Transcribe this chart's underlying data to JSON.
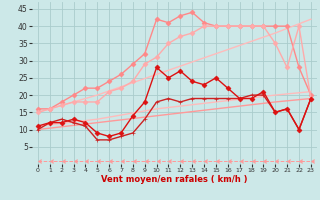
{
  "xlabel": "Vent moyen/en rafales ( km/h )",
  "bg_color": "#cce8e8",
  "grid_color": "#aacccc",
  "xlim": [
    -0.5,
    23.5
  ],
  "ylim": [
    0,
    47
  ],
  "yticks": [
    5,
    10,
    15,
    20,
    25,
    30,
    35,
    40,
    45
  ],
  "xticks": [
    0,
    1,
    2,
    3,
    4,
    5,
    6,
    7,
    8,
    9,
    10,
    11,
    12,
    13,
    14,
    15,
    16,
    17,
    18,
    19,
    20,
    21,
    22,
    23
  ],
  "series": [
    {
      "x": [
        0,
        1,
        2,
        3,
        4,
        5,
        6,
        7,
        8,
        9,
        10,
        11,
        12,
        13,
        14,
        15,
        16,
        17,
        18,
        19,
        20,
        21,
        22,
        23
      ],
      "y": [
        1,
        1,
        1,
        1,
        1,
        1,
        1,
        1,
        1,
        1,
        1,
        1,
        1,
        1,
        1,
        1,
        1,
        1,
        1,
        1,
        1,
        1,
        1,
        1
      ],
      "color": "#ff9999",
      "linewidth": 0.7,
      "marker": 4,
      "markersize": 3,
      "linestyle": "--",
      "zorder": 2
    },
    {
      "x": [
        0,
        5,
        10,
        15,
        20,
        23
      ],
      "y": [
        10,
        12,
        14,
        16,
        18,
        19
      ],
      "color": "#ff9999",
      "linewidth": 1.0,
      "marker": null,
      "markersize": 0,
      "linestyle": "-",
      "zorder": 2
    },
    {
      "x": [
        0,
        5,
        10,
        15,
        20,
        23
      ],
      "y": [
        11,
        13,
        16,
        18,
        20,
        21
      ],
      "color": "#ffbbbb",
      "linewidth": 1.0,
      "marker": null,
      "markersize": 0,
      "linestyle": "-",
      "zorder": 2
    },
    {
      "x": [
        0,
        5,
        10,
        15,
        20,
        23
      ],
      "y": [
        15,
        20,
        26,
        32,
        38,
        42
      ],
      "color": "#ffbbbb",
      "linewidth": 1.0,
      "marker": null,
      "markersize": 0,
      "linestyle": "-",
      "zorder": 2
    },
    {
      "x": [
        0,
        1,
        2,
        3,
        4,
        5,
        6,
        7,
        8,
        9,
        10,
        11,
        12,
        13,
        14,
        15,
        16,
        17,
        18,
        19,
        20,
        21,
        22,
        23
      ],
      "y": [
        16,
        16,
        18,
        20,
        22,
        22,
        24,
        26,
        29,
        32,
        42,
        41,
        43,
        44,
        41,
        40,
        40,
        40,
        40,
        40,
        40,
        40,
        28,
        20
      ],
      "color": "#ff8888",
      "linewidth": 1.0,
      "marker": "D",
      "markersize": 2.5,
      "linestyle": "-",
      "zorder": 3
    },
    {
      "x": [
        0,
        1,
        2,
        3,
        4,
        5,
        6,
        7,
        8,
        9,
        10,
        11,
        12,
        13,
        14,
        15,
        16,
        17,
        18,
        19,
        20,
        21,
        22,
        23
      ],
      "y": [
        15,
        16,
        17,
        18,
        18,
        18,
        21,
        22,
        24,
        29,
        31,
        35,
        37,
        38,
        40,
        40,
        40,
        40,
        40,
        40,
        35,
        28,
        40,
        19
      ],
      "color": "#ffaaaa",
      "linewidth": 1.0,
      "marker": "D",
      "markersize": 2.5,
      "linestyle": "-",
      "zorder": 3
    },
    {
      "x": [
        0,
        1,
        2,
        3,
        4,
        5,
        6,
        7,
        8,
        9,
        10,
        11,
        12,
        13,
        14,
        15,
        16,
        17,
        18,
        19,
        20,
        21,
        22,
        23
      ],
      "y": [
        10,
        12,
        13,
        12,
        11,
        7,
        7,
        8,
        9,
        13,
        18,
        19,
        18,
        19,
        19,
        19,
        19,
        19,
        20,
        20,
        15,
        16,
        10,
        19
      ],
      "color": "#cc2222",
      "linewidth": 1.0,
      "marker": "+",
      "markersize": 3.5,
      "linestyle": "-",
      "zorder": 4
    },
    {
      "x": [
        0,
        1,
        2,
        3,
        4,
        5,
        6,
        7,
        8,
        9,
        10,
        11,
        12,
        13,
        14,
        15,
        16,
        17,
        18,
        19,
        20,
        21,
        22,
        23
      ],
      "y": [
        11,
        12,
        12,
        13,
        12,
        9,
        8,
        9,
        14,
        18,
        28,
        25,
        27,
        24,
        23,
        25,
        22,
        19,
        19,
        21,
        15,
        16,
        10,
        19
      ],
      "color": "#dd1111",
      "linewidth": 1.0,
      "marker": "D",
      "markersize": 2.5,
      "linestyle": "-",
      "zorder": 4
    }
  ]
}
